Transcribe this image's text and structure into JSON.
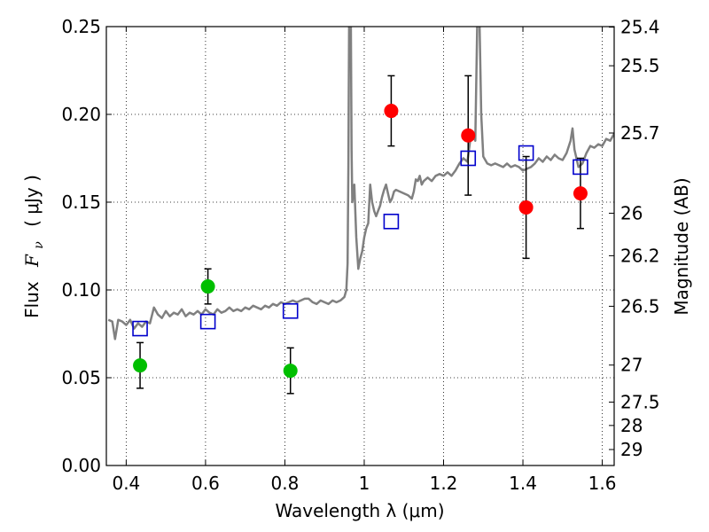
{
  "chart_data": {
    "type": "scatter",
    "xlabel": "Wavelength  λ (μm)",
    "ylabel": "Flux  F_ν  ( μJy )",
    "ylabel_parts": {
      "prefix": "Flux",
      "symbol": "F",
      "subscript": "ν",
      "unit": "( μJy )"
    },
    "y2label": "Magnitude (AB)",
    "xlim": [
      0.35,
      1.63
    ],
    "ylim": [
      0.0,
      0.25
    ],
    "grid": true,
    "x_ticks": [
      0.4,
      0.6,
      0.8,
      1.0,
      1.2,
      1.4,
      1.6
    ],
    "x_tick_labels": [
      "0.4",
      "0.6",
      "0.8",
      "1",
      "1.2",
      "1.4",
      "1.6"
    ],
    "y_ticks": [
      0.0,
      0.05,
      0.1,
      0.15,
      0.2,
      0.25
    ],
    "y_tick_labels": [
      "0.00",
      "0.05",
      "0.10",
      "0.15",
      "0.20",
      "0.25"
    ],
    "y2_ticks": [
      {
        "label": "25.4",
        "flux": 0.2497
      },
      {
        "label": "25.5",
        "flux": 0.2277
      },
      {
        "label": "25.7",
        "flux": 0.1894
      },
      {
        "label": "26",
        "flux": 0.1437
      },
      {
        "label": "26.2",
        "flux": 0.1195
      },
      {
        "label": "26.5",
        "flux": 0.0907
      },
      {
        "label": "27",
        "flux": 0.0572
      },
      {
        "label": "27.5",
        "flux": 0.0361
      },
      {
        "label": "28",
        "flux": 0.0228
      },
      {
        "label": "29",
        "flux": 0.0091
      }
    ],
    "series": [
      {
        "kind": "line",
        "color": "#808080",
        "points": [
          [
            0.355,
            0.083
          ],
          [
            0.365,
            0.082
          ],
          [
            0.372,
            0.072
          ],
          [
            0.38,
            0.083
          ],
          [
            0.39,
            0.082
          ],
          [
            0.4,
            0.08
          ],
          [
            0.41,
            0.083
          ],
          [
            0.42,
            0.078
          ],
          [
            0.43,
            0.081
          ],
          [
            0.44,
            0.079
          ],
          [
            0.45,
            0.082
          ],
          [
            0.46,
            0.081
          ],
          [
            0.47,
            0.09
          ],
          [
            0.48,
            0.086
          ],
          [
            0.49,
            0.084
          ],
          [
            0.5,
            0.088
          ],
          [
            0.51,
            0.085
          ],
          [
            0.52,
            0.087
          ],
          [
            0.53,
            0.086
          ],
          [
            0.54,
            0.089
          ],
          [
            0.55,
            0.085
          ],
          [
            0.56,
            0.087
          ],
          [
            0.57,
            0.086
          ],
          [
            0.58,
            0.088
          ],
          [
            0.59,
            0.086
          ],
          [
            0.6,
            0.089
          ],
          [
            0.61,
            0.087
          ],
          [
            0.62,
            0.086
          ],
          [
            0.63,
            0.089
          ],
          [
            0.64,
            0.087
          ],
          [
            0.65,
            0.088
          ],
          [
            0.66,
            0.09
          ],
          [
            0.67,
            0.088
          ],
          [
            0.68,
            0.089
          ],
          [
            0.69,
            0.088
          ],
          [
            0.7,
            0.09
          ],
          [
            0.71,
            0.089
          ],
          [
            0.72,
            0.091
          ],
          [
            0.73,
            0.09
          ],
          [
            0.74,
            0.089
          ],
          [
            0.75,
            0.091
          ],
          [
            0.76,
            0.09
          ],
          [
            0.77,
            0.092
          ],
          [
            0.78,
            0.091
          ],
          [
            0.79,
            0.093
          ],
          [
            0.8,
            0.092
          ],
          [
            0.81,
            0.093
          ],
          [
            0.82,
            0.094
          ],
          [
            0.83,
            0.093
          ],
          [
            0.84,
            0.094
          ],
          [
            0.85,
            0.095
          ],
          [
            0.86,
            0.095
          ],
          [
            0.87,
            0.093
          ],
          [
            0.88,
            0.092
          ],
          [
            0.89,
            0.094
          ],
          [
            0.9,
            0.093
          ],
          [
            0.91,
            0.092
          ],
          [
            0.92,
            0.094
          ],
          [
            0.93,
            0.093
          ],
          [
            0.94,
            0.094
          ],
          [
            0.95,
            0.096
          ],
          [
            0.955,
            0.1
          ],
          [
            0.958,
            0.115
          ],
          [
            0.96,
            0.17
          ],
          [
            0.962,
            0.26
          ],
          [
            0.966,
            0.26
          ],
          [
            0.968,
            0.18
          ],
          [
            0.97,
            0.15
          ],
          [
            0.975,
            0.16
          ],
          [
            0.98,
            0.13
          ],
          [
            0.985,
            0.112
          ],
          [
            0.99,
            0.118
          ],
          [
            0.995,
            0.122
          ],
          [
            1.0,
            0.13
          ],
          [
            1.005,
            0.135
          ],
          [
            1.01,
            0.138
          ],
          [
            1.015,
            0.16
          ],
          [
            1.02,
            0.15
          ],
          [
            1.025,
            0.145
          ],
          [
            1.03,
            0.142
          ],
          [
            1.035,
            0.145
          ],
          [
            1.04,
            0.148
          ],
          [
            1.045,
            0.153
          ],
          [
            1.05,
            0.157
          ],
          [
            1.055,
            0.16
          ],
          [
            1.06,
            0.155
          ],
          [
            1.065,
            0.15
          ],
          [
            1.07,
            0.152
          ],
          [
            1.075,
            0.156
          ],
          [
            1.08,
            0.157
          ],
          [
            1.09,
            0.156
          ],
          [
            1.1,
            0.155
          ],
          [
            1.11,
            0.154
          ],
          [
            1.12,
            0.152
          ],
          [
            1.125,
            0.156
          ],
          [
            1.13,
            0.163
          ],
          [
            1.135,
            0.162
          ],
          [
            1.14,
            0.165
          ],
          [
            1.145,
            0.16
          ],
          [
            1.15,
            0.162
          ],
          [
            1.16,
            0.164
          ],
          [
            1.17,
            0.162
          ],
          [
            1.18,
            0.165
          ],
          [
            1.19,
            0.166
          ],
          [
            1.2,
            0.165
          ],
          [
            1.21,
            0.167
          ],
          [
            1.22,
            0.165
          ],
          [
            1.23,
            0.168
          ],
          [
            1.24,
            0.172
          ],
          [
            1.25,
            0.175
          ],
          [
            1.26,
            0.173
          ],
          [
            1.27,
            0.19
          ],
          [
            1.28,
            0.185
          ],
          [
            1.285,
            0.255
          ],
          [
            1.29,
            0.26
          ],
          [
            1.295,
            0.2
          ],
          [
            1.3,
            0.176
          ],
          [
            1.31,
            0.172
          ],
          [
            1.32,
            0.171
          ],
          [
            1.33,
            0.172
          ],
          [
            1.34,
            0.171
          ],
          [
            1.35,
            0.17
          ],
          [
            1.36,
            0.172
          ],
          [
            1.37,
            0.17
          ],
          [
            1.38,
            0.171
          ],
          [
            1.39,
            0.17
          ],
          [
            1.4,
            0.168
          ],
          [
            1.41,
            0.169
          ],
          [
            1.42,
            0.17
          ],
          [
            1.43,
            0.172
          ],
          [
            1.44,
            0.175
          ],
          [
            1.45,
            0.173
          ],
          [
            1.46,
            0.176
          ],
          [
            1.47,
            0.174
          ],
          [
            1.48,
            0.177
          ],
          [
            1.49,
            0.175
          ],
          [
            1.5,
            0.174
          ],
          [
            1.51,
            0.178
          ],
          [
            1.52,
            0.185
          ],
          [
            1.525,
            0.192
          ],
          [
            1.53,
            0.18
          ],
          [
            1.54,
            0.17
          ],
          [
            1.55,
            0.172
          ],
          [
            1.56,
            0.178
          ],
          [
            1.57,
            0.182
          ],
          [
            1.58,
            0.181
          ],
          [
            1.59,
            0.183
          ],
          [
            1.6,
            0.182
          ],
          [
            1.61,
            0.186
          ],
          [
            1.62,
            0.185
          ],
          [
            1.63,
            0.189
          ]
        ]
      },
      {
        "kind": "points",
        "marker": "circle",
        "color": "#00bf00",
        "points": [
          {
            "x": 0.435,
            "y": 0.057,
            "err": 0.013
          },
          {
            "x": 0.606,
            "y": 0.102,
            "err": 0.01
          },
          {
            "x": 0.814,
            "y": 0.054,
            "err": 0.013
          }
        ]
      },
      {
        "kind": "points",
        "marker": "circle",
        "color": "#ff0000",
        "points": [
          {
            "x": 1.068,
            "y": 0.202,
            "err": 0.02
          },
          {
            "x": 1.262,
            "y": 0.188,
            "err": 0.034
          },
          {
            "x": 1.408,
            "y": 0.147,
            "err": 0.029
          },
          {
            "x": 1.545,
            "y": 0.155,
            "err": 0.02
          }
        ]
      },
      {
        "kind": "points",
        "marker": "open-square",
        "color": "#0000cc",
        "points": [
          {
            "x": 0.435,
            "y": 0.078
          },
          {
            "x": 0.606,
            "y": 0.082
          },
          {
            "x": 0.814,
            "y": 0.088
          },
          {
            "x": 1.068,
            "y": 0.139
          },
          {
            "x": 1.262,
            "y": 0.175
          },
          {
            "x": 1.408,
            "y": 0.178
          },
          {
            "x": 1.545,
            "y": 0.17
          }
        ]
      }
    ]
  }
}
